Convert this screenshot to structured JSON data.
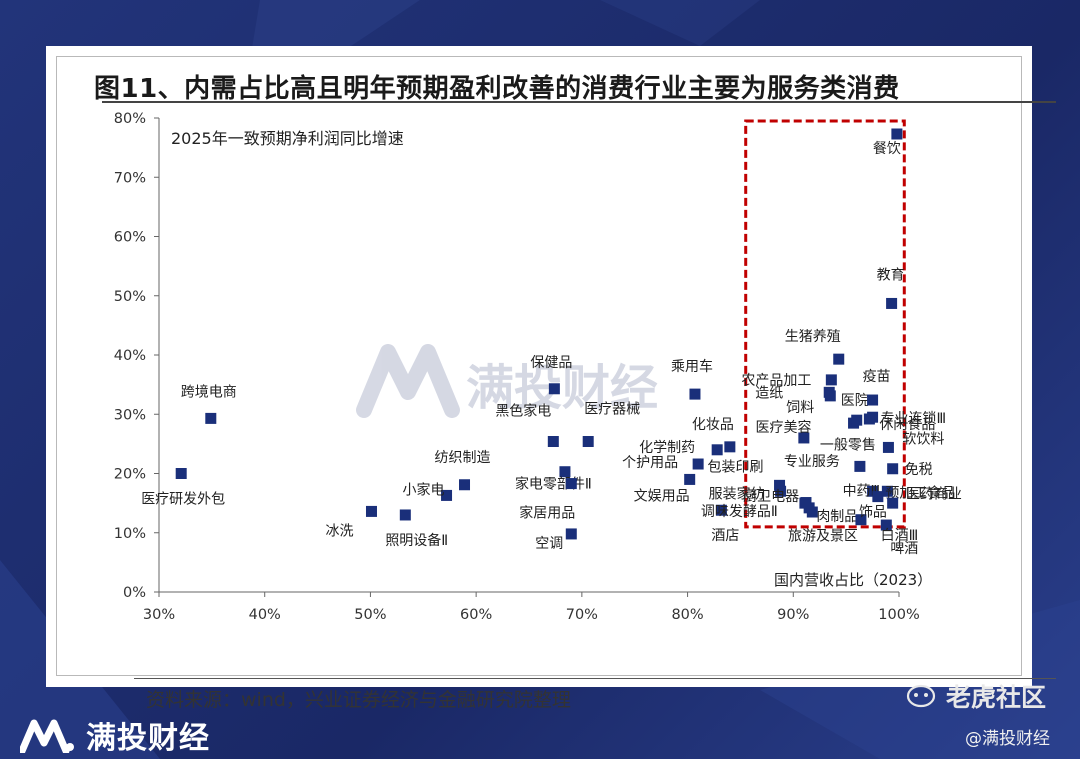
{
  "title": "图11、内需占比高且明年预期盈利改善的消费行业主要为服务类消费",
  "source": "资料来源：wind，兴业证券经济与金融研究院整理",
  "watermark": {
    "text": "满投财经"
  },
  "brand": {
    "name": "满投财经"
  },
  "community_watermark": {
    "text": "老虎社区",
    "handle": "@满投财经"
  },
  "colors": {
    "marker": "#1a2f7a",
    "highlight_box": "#c00000",
    "background": "#1d2c6b"
  },
  "chart_data": {
    "type": "scatter",
    "title": "2025年一致预期净利润同比增速",
    "xlabel": "国内营收占比（2023）",
    "ylabel": "2025年一致预期净利润同比增速",
    "xlim": [
      0.3,
      1.0
    ],
    "ylim": [
      0.0,
      0.8
    ],
    "xticks": [
      "30%",
      "40%",
      "50%",
      "60%",
      "70%",
      "80%",
      "90%",
      "100%"
    ],
    "yticks": [
      "0%",
      "10%",
      "20%",
      "30%",
      "40%",
      "50%",
      "60%",
      "70%",
      "80%"
    ],
    "grid": false,
    "legend": "none",
    "highlight_region": {
      "x": [
        0.855,
        1.005
      ],
      "y": [
        0.11,
        0.795
      ]
    },
    "points": [
      {
        "label": "医疗研发外包",
        "x": 0.321,
        "y": 0.2
      },
      {
        "label": "跨境电商",
        "x": 0.349,
        "y": 0.293
      },
      {
        "label": "冰洗",
        "x": 0.501,
        "y": 0.136
      },
      {
        "label": "照明设备Ⅱ",
        "x": 0.533,
        "y": 0.13
      },
      {
        "label": "小家电",
        "x": 0.572,
        "y": 0.163
      },
      {
        "label": "纺织制造",
        "x": 0.589,
        "y": 0.181
      },
      {
        "label": "保健品",
        "x": 0.674,
        "y": 0.343
      },
      {
        "label": "黑色家电",
        "x": 0.673,
        "y": 0.254
      },
      {
        "label": "家电零部件Ⅱ",
        "x": 0.684,
        "y": 0.203
      },
      {
        "label": "家居用品",
        "x": 0.69,
        "y": 0.183
      },
      {
        "label": "医疗器械",
        "x": 0.706,
        "y": 0.254
      },
      {
        "label": "空调",
        "x": 0.69,
        "y": 0.098
      },
      {
        "label": "乘用车",
        "x": 0.807,
        "y": 0.334
      },
      {
        "label": "化学制药",
        "x": 0.828,
        "y": 0.24
      },
      {
        "label": "化妆品",
        "x": 0.84,
        "y": 0.245
      },
      {
        "label": "个护用品",
        "x": 0.81,
        "y": 0.216
      },
      {
        "label": "文娱用品",
        "x": 0.802,
        "y": 0.19
      },
      {
        "label": "酒店",
        "x": 0.832,
        "y": 0.138
      },
      {
        "label": "包装印刷",
        "x": 0.887,
        "y": 0.18
      },
      {
        "label": "服装家纺",
        "x": 0.888,
        "y": 0.17
      },
      {
        "label": "调味发酵品Ⅱ",
        "x": 0.911,
        "y": 0.15
      },
      {
        "label": "专业服务",
        "x": 0.91,
        "y": 0.26
      },
      {
        "label": "厨卫电器",
        "x": 0.915,
        "y": 0.142
      },
      {
        "label": "肉制品",
        "x": 0.918,
        "y": 0.135
      },
      {
        "label": "旅游及景区",
        "x": 0.912,
        "y": 0.151
      },
      {
        "label": "农产品加工",
        "x": 0.936,
        "y": 0.358
      },
      {
        "label": "造纸",
        "x": 0.934,
        "y": 0.337
      },
      {
        "label": "饲料",
        "x": 0.935,
        "y": 0.331
      },
      {
        "label": "生猪养殖",
        "x": 0.943,
        "y": 0.393
      },
      {
        "label": "医疗美容",
        "x": 0.957,
        "y": 0.285
      },
      {
        "label": "医院",
        "x": 0.96,
        "y": 0.29
      },
      {
        "label": "一般零售",
        "x": 0.963,
        "y": 0.212
      },
      {
        "label": "疫苗",
        "x": 0.975,
        "y": 0.324
      },
      {
        "label": "专业连锁Ⅲ",
        "x": 0.975,
        "y": 0.295
      },
      {
        "label": "休闲食品",
        "x": 0.972,
        "y": 0.292
      },
      {
        "label": "中药Ⅲ",
        "x": 0.975,
        "y": 0.17
      },
      {
        "label": "饰品",
        "x": 0.964,
        "y": 0.122
      },
      {
        "label": "医药商业",
        "x": 0.98,
        "y": 0.161
      },
      {
        "label": "预加工食品",
        "x": 0.989,
        "y": 0.17
      },
      {
        "label": "软饮料",
        "x": 0.99,
        "y": 0.244
      },
      {
        "label": "免税",
        "x": 0.994,
        "y": 0.208
      },
      {
        "label": "啤酒",
        "x": 0.988,
        "y": 0.113
      },
      {
        "label": "白酒Ⅲ",
        "x": 0.994,
        "y": 0.15
      },
      {
        "label": "教育",
        "x": 0.993,
        "y": 0.487
      },
      {
        "label": "餐饮",
        "x": 0.998,
        "y": 0.773
      }
    ]
  }
}
